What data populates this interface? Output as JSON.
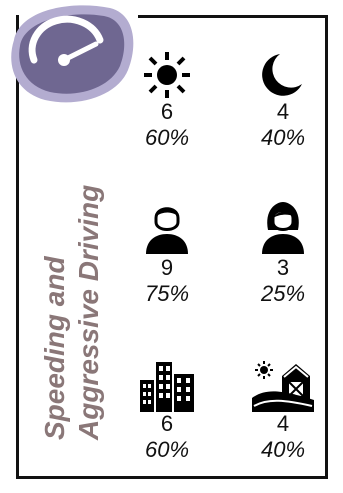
{
  "title": {
    "line1": "Speeding and",
    "line2": "Aggressive Driving"
  },
  "colors": {
    "title": "#8a7778",
    "badge_fill": "#b3acd0",
    "badge_dark": "#6f6791"
  },
  "groups": [
    {
      "left": {
        "icon": "sun-icon",
        "count": "6",
        "percent": "60%"
      },
      "right": {
        "icon": "moon-icon",
        "count": "4",
        "percent": "40%"
      }
    },
    {
      "left": {
        "icon": "man-icon",
        "count": "9",
        "percent": "75%"
      },
      "right": {
        "icon": "woman-icon",
        "count": "3",
        "percent": "25%"
      }
    },
    {
      "left": {
        "icon": "city-buildings-icon",
        "count": "6",
        "percent": "60%"
      },
      "right": {
        "icon": "rural-barn-icon",
        "count": "4",
        "percent": "40%"
      }
    }
  ]
}
